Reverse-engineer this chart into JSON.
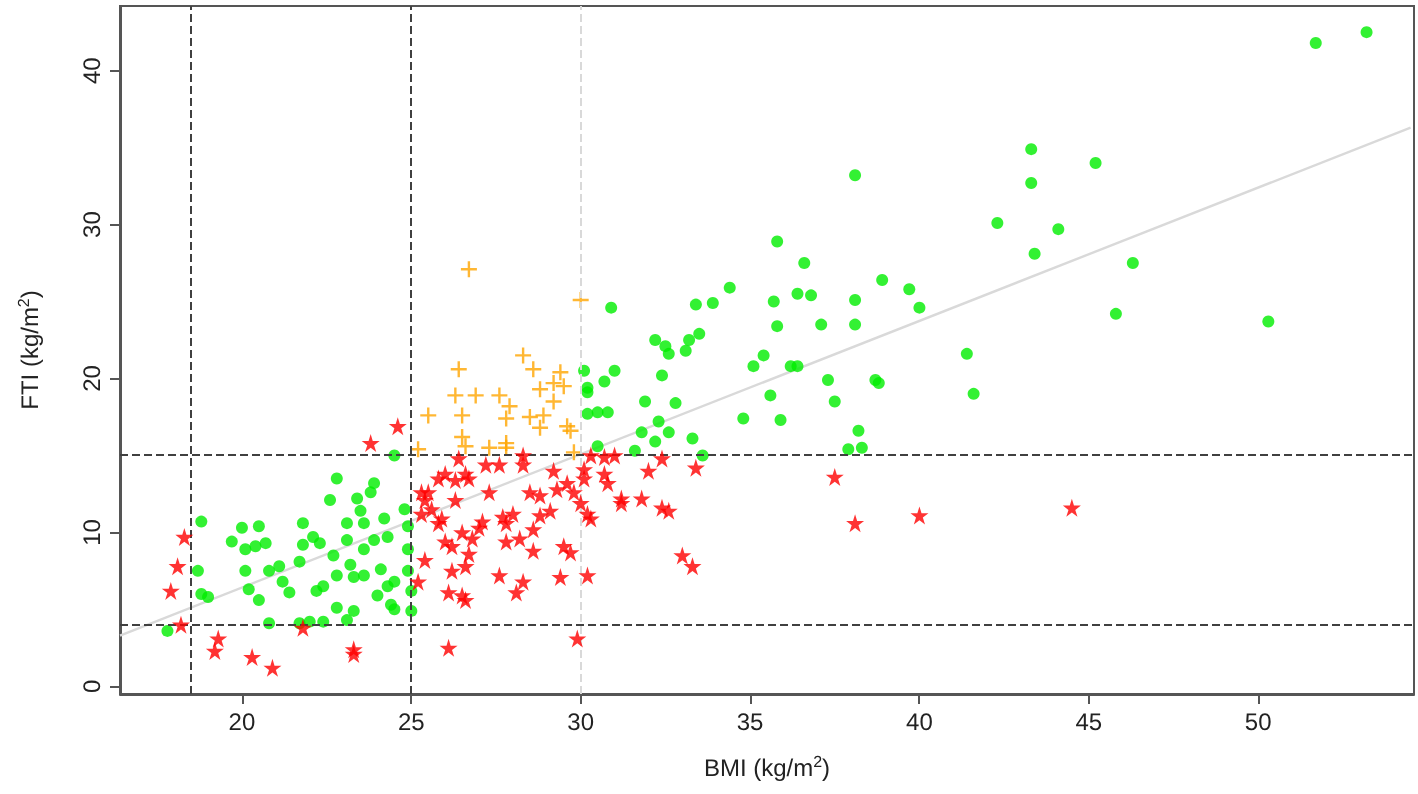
{
  "chart_data": {
    "type": "scatter",
    "xlabel": "BMI (kg/m$^{2}$)",
    "ylabel": "FTI (kg/m$^{2}$)",
    "xlim": [
      16.4,
      54.6
    ],
    "ylim": [
      -0.5,
      44.2
    ],
    "xticks": [
      20,
      25,
      30,
      35,
      40,
      45,
      50
    ],
    "yticks": [
      0,
      10,
      20,
      30,
      40
    ],
    "series": [
      {
        "marker": "circle",
        "color": "#00ee00",
        "x": [
          51.7,
          53.2,
          43.3,
          45.2,
          43.3,
          38.1,
          42.3,
          44.1,
          43.4,
          46.3,
          45.8,
          50.3,
          35.8,
          34.4,
          36.6,
          36.8,
          36.4,
          33.9,
          33.4,
          30.9,
          35.7,
          38.1,
          38.9,
          39.7,
          40.0,
          38.1,
          37.1,
          35.8,
          32.2,
          33.2,
          33.5,
          32.5,
          32.6,
          33.1,
          35.4,
          36.2,
          36.4,
          35.1,
          30.1,
          31.0,
          41.4,
          41.6,
          38.7,
          38.8,
          37.3,
          37.5,
          35.6,
          35.9,
          34.8,
          32.4,
          32.8,
          31.9,
          32.3,
          32.6,
          31.8,
          30.2,
          30.2,
          30.7,
          30.5,
          30.8,
          30.2,
          30.5,
          31.6,
          33.3,
          32.2,
          33.6,
          38.2,
          37.9,
          38.3,
          17.8,
          18.8,
          18.7,
          18.8,
          19.0,
          19.7,
          20.0,
          20.1,
          20.1,
          20.2,
          20.5,
          20.4,
          20.7,
          20.5,
          20.8,
          20.8,
          21.1,
          21.2,
          21.4,
          21.8,
          21.7,
          21.8,
          21.7,
          22.0,
          22.1,
          22.2,
          22.3,
          22.4,
          22.6,
          22.8,
          22.7,
          22.8,
          22.8,
          22.4,
          23.1,
          23.1,
          23.1,
          23.2,
          23.3,
          23.3,
          23.4,
          23.5,
          23.6,
          23.6,
          23.6,
          23.8,
          23.9,
          23.9,
          24.0,
          24.1,
          24.2,
          24.3,
          24.3,
          24.4,
          24.5,
          24.5,
          24.8,
          24.9,
          24.9,
          24.9,
          25.0,
          25.0,
          24.5
        ],
        "values": [
          41.8,
          42.5,
          34.9,
          34.0,
          32.7,
          33.2,
          30.1,
          29.7,
          28.1,
          27.5,
          24.2,
          23.7,
          28.9,
          25.9,
          27.5,
          25.4,
          25.5,
          24.9,
          24.8,
          24.6,
          25.0,
          25.1,
          26.4,
          25.8,
          24.6,
          23.5,
          23.5,
          23.4,
          22.5,
          22.5,
          22.9,
          22.1,
          21.6,
          21.8,
          21.5,
          20.8,
          20.8,
          20.8,
          20.5,
          20.5,
          21.6,
          19.0,
          19.9,
          19.7,
          19.9,
          18.5,
          18.9,
          17.3,
          17.4,
          20.2,
          18.4,
          18.5,
          17.2,
          16.5,
          16.5,
          19.4,
          19.1,
          19.8,
          17.8,
          17.8,
          17.7,
          15.6,
          15.3,
          16.1,
          15.9,
          15.0,
          16.6,
          15.4,
          15.5,
          3.6,
          10.7,
          7.5,
          6.0,
          5.8,
          9.4,
          10.3,
          8.9,
          7.5,
          6.3,
          10.4,
          9.1,
          9.3,
          5.6,
          4.1,
          7.5,
          7.8,
          6.8,
          6.1,
          10.6,
          8.1,
          9.2,
          4.1,
          4.2,
          9.7,
          6.2,
          9.3,
          6.5,
          12.1,
          13.5,
          8.5,
          7.2,
          5.1,
          4.2,
          10.6,
          9.5,
          4.3,
          7.9,
          7.1,
          4.9,
          12.2,
          11.4,
          10.6,
          7.2,
          8.9,
          12.6,
          13.2,
          9.5,
          5.9,
          7.6,
          10.9,
          9.7,
          6.5,
          5.3,
          5.0,
          15.0,
          11.5,
          10.4,
          8.9,
          7.5,
          6.2,
          4.9,
          6.8
        ]
      },
      {
        "marker": "cross",
        "color": "#ffa500",
        "x": [
          26.7,
          30.0,
          26.4,
          28.3,
          28.6,
          29.4,
          25.5,
          26.3,
          26.5,
          26.9,
          27.6,
          27.9,
          27.8,
          28.5,
          28.9,
          28.8,
          29.2,
          29.5,
          29.2,
          29.6,
          29.7,
          28.8,
          26.5,
          26.6,
          25.2,
          27.3,
          27.8,
          27.8,
          29.8
        ],
        "values": [
          27.1,
          25.1,
          20.6,
          21.5,
          20.6,
          20.4,
          17.6,
          18.9,
          17.6,
          18.9,
          18.9,
          18.2,
          17.4,
          17.5,
          17.6,
          19.3,
          19.7,
          19.5,
          18.5,
          16.9,
          16.6,
          16.8,
          16.2,
          15.6,
          15.4,
          15.5,
          15.8,
          15.5,
          15.2
        ]
      },
      {
        "marker": "star",
        "color": "#ff0000",
        "x": [
          17.9,
          18.1,
          18.3,
          18.2,
          19.2,
          19.3,
          20.3,
          20.9,
          21.8,
          23.3,
          23.3,
          23.8,
          24.6,
          25.2,
          25.4,
          25.3,
          25.4,
          25.5,
          25.3,
          25.6,
          25.8,
          25.8,
          26.0,
          25.9,
          26.0,
          26.2,
          26.1,
          26.1,
          26.3,
          26.3,
          26.4,
          26.6,
          26.5,
          26.2,
          26.6,
          26.5,
          26.6,
          26.7,
          26.7,
          26.8,
          27.0,
          27.1,
          27.2,
          27.3,
          27.6,
          27.6,
          27.7,
          27.8,
          27.8,
          28.0,
          28.1,
          28.3,
          28.3,
          28.3,
          28.2,
          28.5,
          28.6,
          28.8,
          28.6,
          28.8,
          29.1,
          29.2,
          29.3,
          29.4,
          29.5,
          29.6,
          29.7,
          29.8,
          29.9,
          30.0,
          30.1,
          30.1,
          30.2,
          30.2,
          30.3,
          30.3,
          30.7,
          30.7,
          30.8,
          31.0,
          31.2,
          31.2,
          31.8,
          32.0,
          32.4,
          32.4,
          32.6,
          33.0,
          33.3,
          33.4,
          37.5,
          38.1,
          40.0,
          44.5
        ],
        "values": [
          6.2,
          7.8,
          9.7,
          4.0,
          2.3,
          3.1,
          1.9,
          1.2,
          3.8,
          2.4,
          2.1,
          15.8,
          16.9,
          6.8,
          8.2,
          12.6,
          12.1,
          12.6,
          11.2,
          11.5,
          10.6,
          13.5,
          13.8,
          10.9,
          9.4,
          9.1,
          6.1,
          2.5,
          12.1,
          13.4,
          14.8,
          13.8,
          10.0,
          7.5,
          7.8,
          5.9,
          5.6,
          8.6,
          13.5,
          9.6,
          10.3,
          10.7,
          14.4,
          12.6,
          7.2,
          14.4,
          11.0,
          10.6,
          9.4,
          11.2,
          6.1,
          15.0,
          14.4,
          6.8,
          9.6,
          12.6,
          10.2,
          12.4,
          8.8,
          11.1,
          11.4,
          14.0,
          12.8,
          7.1,
          9.1,
          13.2,
          8.7,
          12.6,
          3.1,
          11.9,
          14.1,
          13.5,
          7.2,
          11.2,
          10.9,
          15.0,
          14.9,
          13.8,
          13.2,
          15.0,
          12.2,
          11.9,
          12.2,
          14.0,
          14.8,
          11.6,
          11.4,
          8.5,
          7.8,
          14.2,
          13.6,
          10.6,
          11.1,
          11.6
        ]
      },
      {
        "type": "line",
        "marker": "none",
        "color": "#d9d9d9",
        "x": [
          16.4,
          54.5
        ],
        "values": [
          3.3,
          36.3
        ]
      }
    ],
    "ref_lines": [
      {
        "axis": "x",
        "value": 18.5,
        "color": "#404040",
        "line_style": "dashed"
      },
      {
        "axis": "x",
        "value": 25,
        "color": "#404040",
        "line_style": "dashed"
      },
      {
        "axis": "x",
        "value": 30,
        "color": "#d9d9d9",
        "line_style": "dashed"
      },
      {
        "axis": "y",
        "value": 15,
        "color": "#404040",
        "line_style": "dashed"
      },
      {
        "axis": "y",
        "value": 4,
        "color": "#404040",
        "line_style": "dashed"
      }
    ]
  }
}
